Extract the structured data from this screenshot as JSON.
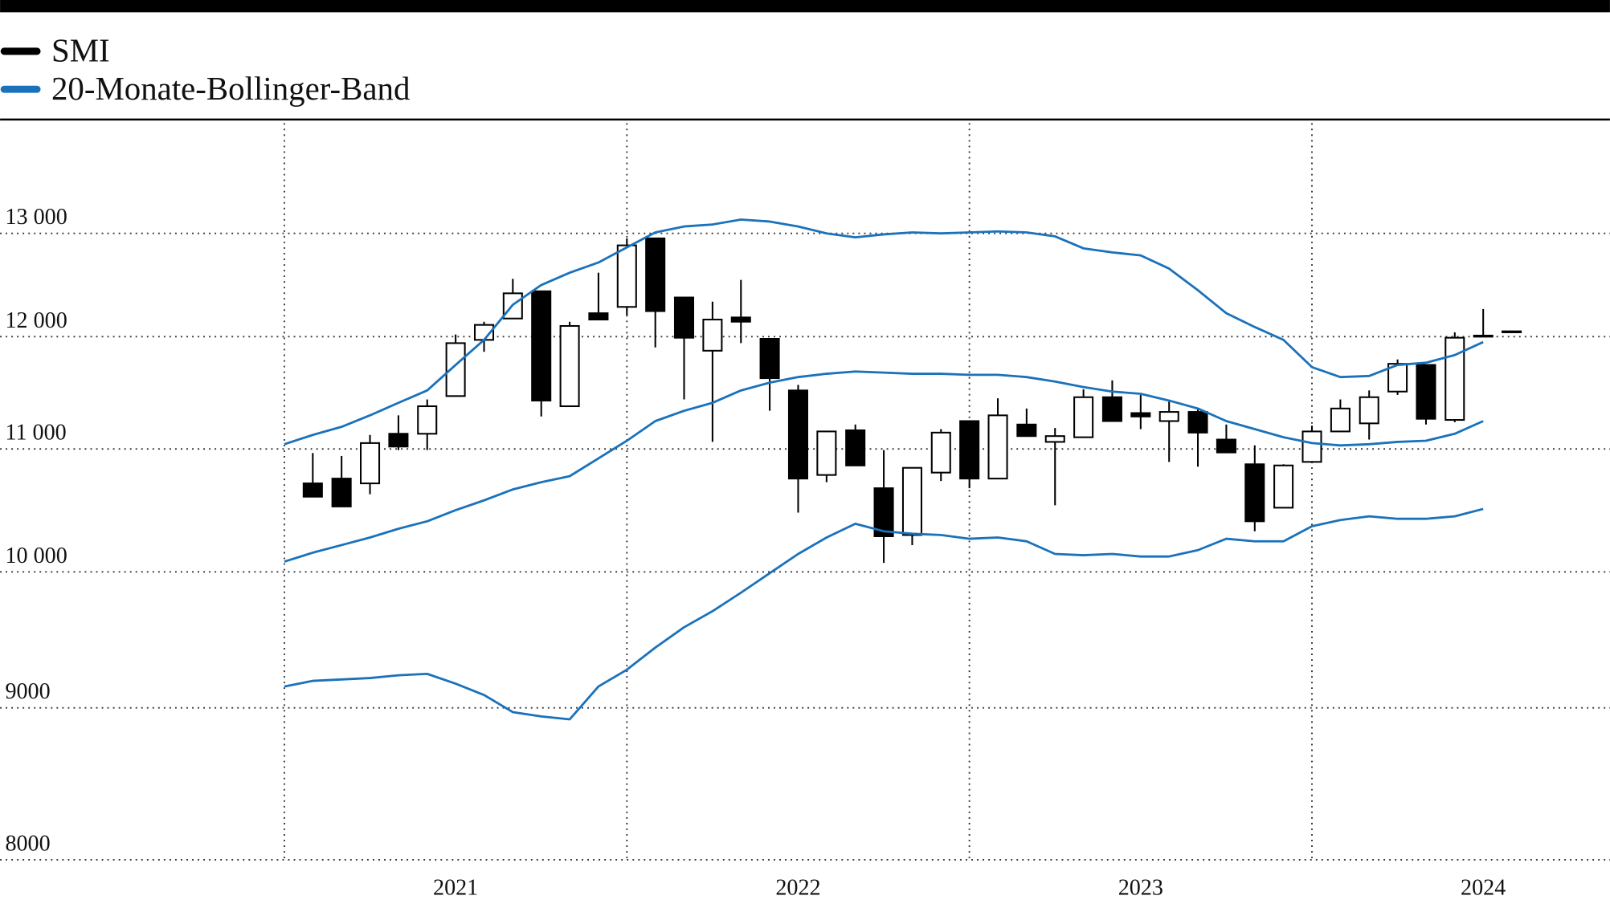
{
  "chart_data": {
    "type": "candlestick",
    "log_scale": true,
    "grid": true,
    "legend_position": "top-left",
    "ylim": [
      8000,
      14160
    ],
    "yticks": [
      8000,
      9000,
      {
        "value": 10000,
        "label": "10 000"
      },
      {
        "value": 11000,
        "label": "11 000"
      },
      {
        "value": 12000,
        "label": "12 000"
      },
      {
        "value": 13000,
        "label": "13 000"
      }
    ],
    "xlim": [
      2020.17,
      2024.87
    ],
    "xticks": [
      2021,
      2022,
      2023,
      2024
    ],
    "series": [
      {
        "name": "SMI",
        "type": "candlestick",
        "color": "#000000",
        "x": [
          2021.083,
          2021.167,
          2021.25,
          2021.333,
          2021.417,
          2021.5,
          2021.583,
          2021.667,
          2021.75,
          2021.833,
          2021.917,
          2022,
          2022.083,
          2022.167,
          2022.25,
          2022.333,
          2022.417,
          2022.5,
          2022.583,
          2022.667,
          2022.75,
          2022.833,
          2022.917,
          2023,
          2023.083,
          2023.167,
          2023.25,
          2023.333,
          2023.417,
          2023.5,
          2023.583,
          2023.667,
          2023.75,
          2023.833,
          2023.917,
          2024,
          2024.083,
          2024.167,
          2024.25,
          2024.333,
          2024.417,
          2024.5,
          2024.583
        ],
        "open": [
          10710,
          10750,
          10710,
          11130,
          11130,
          11460,
          11970,
          12170,
          12430,
          11370,
          12220,
          12280,
          12950,
          12370,
          11870,
          12180,
          11980,
          11510,
          10780,
          11160,
          10670,
          10290,
          10800,
          11240,
          10750,
          11210,
          11060,
          11100,
          11450,
          11310,
          11240,
          11320,
          11080,
          10870,
          10510,
          10890,
          11150,
          11220,
          11500,
          11740,
          11250,
          12010,
          12050
        ],
        "high": [
          10965,
          10940,
          11120,
          11290,
          11430,
          12020,
          12140,
          12550,
          12430,
          12140,
          12610,
          12950,
          12950,
          12370,
          12330,
          12540,
          11980,
          11560,
          11150,
          11210,
          10990,
          10840,
          11170,
          11240,
          11440,
          11350,
          11180,
          11520,
          11600,
          11470,
          11410,
          11350,
          11210,
          11030,
          10870,
          11200,
          11430,
          11510,
          11790,
          11740,
          12040,
          12260,
          12050
        ],
        "low": [
          10600,
          10520,
          10620,
          10990,
          10990,
          11460,
          11860,
          12170,
          11280,
          11370,
          12160,
          12200,
          11900,
          11430,
          11060,
          11940,
          11330,
          10470,
          10720,
          10860,
          10070,
          10210,
          10730,
          10670,
          10750,
          11110,
          10530,
          11100,
          11240,
          11170,
          10890,
          10850,
          10970,
          10320,
          10510,
          10890,
          11150,
          11080,
          11470,
          11210,
          11230,
          12000,
          12050
        ],
        "close": [
          10600,
          10520,
          11050,
          11020,
          11370,
          11940,
          12110,
          12410,
          11420,
          12100,
          12160,
          12880,
          12240,
          11990,
          12160,
          12140,
          11620,
          10750,
          11150,
          10860,
          10280,
          10840,
          11140,
          10750,
          11290,
          11110,
          11110,
          11450,
          11240,
          11280,
          11320,
          11140,
          10970,
          10400,
          10860,
          11150,
          11350,
          11450,
          11750,
          11260,
          11990,
          12000,
          12050
        ]
      },
      {
        "name": "20-Monate-Bollinger-Band",
        "type": "band",
        "color": "#1a72bb",
        "x": [
          2021,
          2021.083,
          2021.167,
          2021.25,
          2021.333,
          2021.417,
          2021.5,
          2021.583,
          2021.667,
          2021.75,
          2021.833,
          2021.917,
          2022,
          2022.083,
          2022.167,
          2022.25,
          2022.333,
          2022.417,
          2022.5,
          2022.583,
          2022.667,
          2022.75,
          2022.833,
          2022.917,
          2023,
          2023.083,
          2023.167,
          2023.25,
          2023.333,
          2023.417,
          2023.5,
          2023.583,
          2023.667,
          2023.75,
          2023.833,
          2023.917,
          2024,
          2024.083,
          2024.167,
          2024.25,
          2024.333,
          2024.417,
          2024.5
        ],
        "upper": [
          11040,
          11120,
          11190,
          11290,
          11400,
          11510,
          11740,
          11970,
          12300,
          12490,
          12610,
          12710,
          12860,
          13010,
          13070,
          13090,
          13140,
          13120,
          13070,
          13000,
          12960,
          12990,
          13010,
          13000,
          13010,
          13020,
          13010,
          12970,
          12850,
          12810,
          12780,
          12650,
          12440,
          12220,
          12090,
          11970,
          11720,
          11630,
          11640,
          11740,
          11760,
          11830,
          11950
        ],
        "middle": [
          10080,
          10150,
          10210,
          10270,
          10340,
          10400,
          10490,
          10570,
          10660,
          10720,
          10770,
          10920,
          11070,
          11240,
          11330,
          11400,
          11510,
          11580,
          11630,
          11660,
          11680,
          11670,
          11660,
          11660,
          11650,
          11650,
          11630,
          11590,
          11540,
          11500,
          11480,
          11420,
          11350,
          11240,
          11170,
          11100,
          11050,
          11030,
          11040,
          11060,
          11070,
          11130,
          11240
        ],
        "lower": [
          9150,
          9190,
          9200,
          9210,
          9230,
          9240,
          9170,
          9090,
          8970,
          8940,
          8920,
          9150,
          9270,
          9430,
          9580,
          9700,
          9840,
          9990,
          10140,
          10270,
          10380,
          10320,
          10300,
          10290,
          10260,
          10270,
          10240,
          10140,
          10130,
          10140,
          10120,
          10120,
          10170,
          10260,
          10240,
          10240,
          10360,
          10410,
          10440,
          10420,
          10420,
          10440,
          10500
        ]
      }
    ]
  }
}
